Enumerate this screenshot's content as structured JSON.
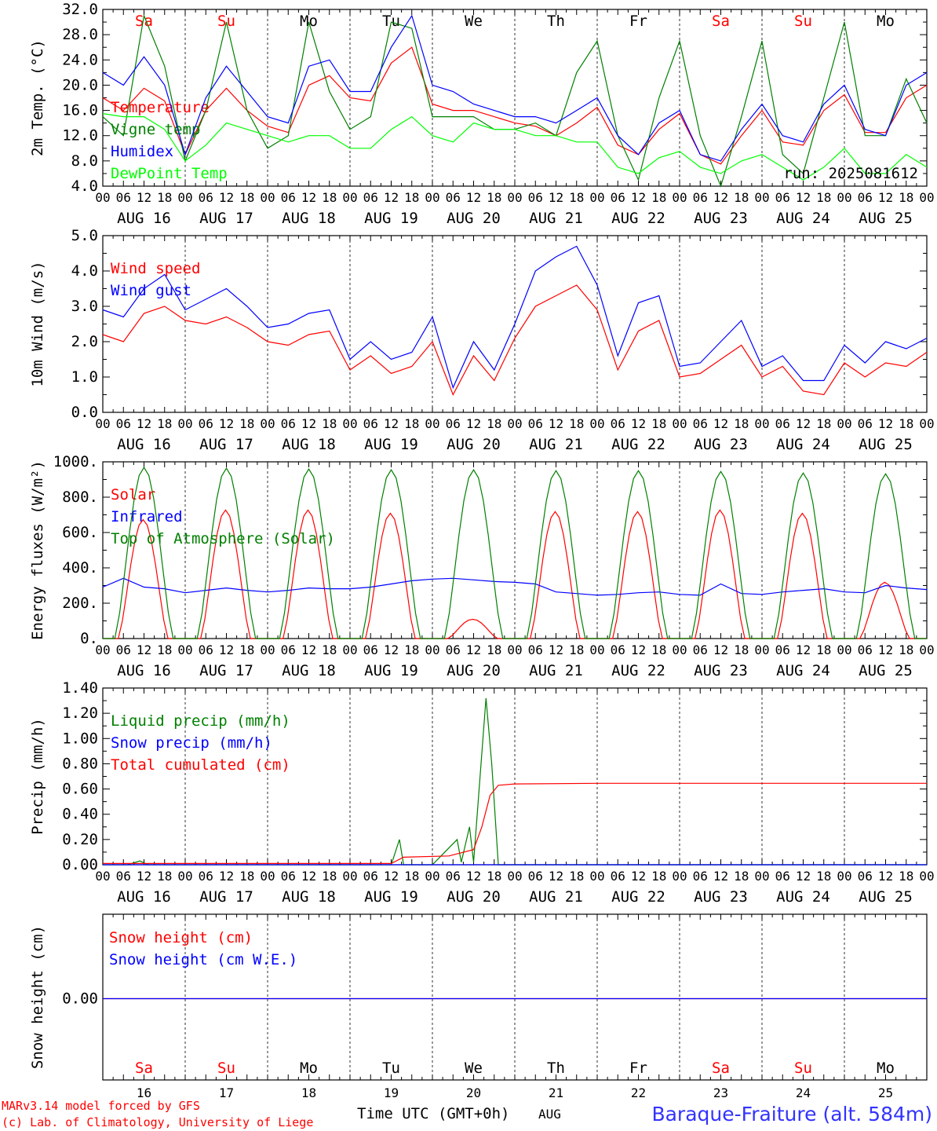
{
  "time_axis": {
    "hour_labels": [
      "00",
      "06",
      "12",
      "18"
    ],
    "final_hour_label": "00",
    "date_labels": [
      "AUG 16",
      "AUG 17",
      "AUG 18",
      "AUG 19",
      "AUG 20",
      "AUG 21",
      "AUG 22",
      "AUG 23",
      "AUG 24",
      "AUG 25"
    ],
    "weekdays": [
      "Sa",
      "Su",
      "Mo",
      "Tu",
      "We",
      "Th",
      "Fr",
      "Sa",
      "Su",
      "Mo"
    ],
    "weekend_flags": [
      true,
      true,
      false,
      false,
      false,
      false,
      false,
      true,
      true,
      false
    ],
    "bottom_day_numbers": [
      "16",
      "17",
      "18",
      "19",
      "20",
      "21",
      "22",
      "23",
      "24",
      "25"
    ],
    "xlabel": "Time UTC (GMT+0h)",
    "month_label": "AUG"
  },
  "footer": {
    "model": "MARv3.14 model forced by GFS",
    "lab": "(c) Lab. of Climatology, University of Liege",
    "station": "Baraque-Fraiture (alt. 584m)"
  },
  "colors": {
    "red": "#ff0000",
    "green": "#008000",
    "blue": "#0000ff",
    "lightgreen": "#00ff00"
  },
  "chart_data": [
    {
      "type": "line",
      "ylabel": "2m Temp. (°C)",
      "ylim": [
        4,
        32
      ],
      "yticks": [
        "4.0",
        "8.0",
        "12.0",
        "16.0",
        "20.0",
        "24.0",
        "28.0",
        "32.0"
      ],
      "annotation": "run: 2025081612",
      "x_units": "days since AUG 16 00 UTC",
      "series": [
        {
          "name": "Temperature",
          "color": "#ff0000",
          "x": [
            0,
            0.25,
            0.5,
            0.75,
            1,
            1.25,
            1.5,
            1.75,
            2,
            2.25,
            2.5,
            2.75,
            3,
            3.25,
            3.5,
            3.75,
            4,
            4.25,
            4.5,
            4.75,
            5,
            5.25,
            5.5,
            5.75,
            6,
            6.25,
            6.5,
            6.75,
            7,
            7.25,
            7.5,
            7.75,
            8,
            8.25,
            8.5,
            8.75,
            9,
            9.25,
            9.5,
            9.75,
            10
          ],
          "values": [
            18,
            16,
            19.5,
            17.5,
            9,
            16,
            19.5,
            16,
            13.5,
            12.5,
            20,
            21.5,
            18,
            17.5,
            23.5,
            26,
            17,
            16,
            16,
            15,
            14,
            13.5,
            12,
            14,
            16.5,
            10.5,
            9,
            13,
            15.5,
            9,
            7.5,
            12,
            16,
            11,
            10.5,
            16,
            18.5,
            12.5,
            12.5,
            18,
            20
          ]
        },
        {
          "name": "Vigne temp",
          "color": "#008000",
          "x": [
            0,
            0.25,
            0.5,
            0.75,
            1,
            1.25,
            1.5,
            1.75,
            2,
            2.25,
            2.5,
            2.75,
            3,
            3.25,
            3.5,
            3.75,
            4,
            4.25,
            4.5,
            4.75,
            5,
            5.25,
            5.5,
            5.75,
            6,
            6.25,
            6.5,
            6.75,
            7,
            7.25,
            7.5,
            7.75,
            8,
            8.25,
            8.5,
            8.75,
            9,
            9.25,
            9.5,
            9.75,
            10
          ],
          "values": [
            15,
            12,
            31,
            23,
            8,
            16,
            30,
            16,
            10,
            12,
            30,
            19,
            13,
            15,
            30,
            29,
            15,
            15,
            15,
            13,
            13,
            14,
            12,
            22,
            27,
            12,
            5,
            18,
            27,
            12,
            4,
            15,
            27,
            9,
            6,
            18,
            30,
            12,
            12,
            21,
            14
          ]
        },
        {
          "name": "Humidex",
          "color": "#0000ff",
          "x": [
            0,
            0.25,
            0.5,
            0.75,
            1,
            1.25,
            1.5,
            1.75,
            2,
            2.25,
            2.5,
            2.75,
            3,
            3.25,
            3.5,
            3.75,
            4,
            4.25,
            4.5,
            4.75,
            5,
            5.25,
            5.5,
            5.75,
            6,
            6.25,
            6.5,
            6.75,
            7,
            7.25,
            7.5,
            7.75,
            8,
            8.25,
            8.5,
            8.75,
            9,
            9.25,
            9.5,
            9.75,
            10
          ],
          "values": [
            22,
            20,
            24.5,
            20,
            9,
            18,
            23,
            19,
            15,
            14,
            23,
            24,
            19,
            19,
            26,
            31,
            20,
            19,
            17,
            16,
            15,
            15,
            14,
            16,
            18,
            12,
            9,
            14,
            16,
            9,
            8,
            13,
            17,
            12,
            11,
            17,
            20,
            13,
            12,
            20,
            22
          ]
        },
        {
          "name": "DewPoint Temp",
          "color": "#00ff00",
          "x": [
            0,
            0.25,
            0.5,
            0.75,
            1,
            1.25,
            1.5,
            1.75,
            2,
            2.25,
            2.5,
            2.75,
            3,
            3.25,
            3.5,
            3.75,
            4,
            4.25,
            4.5,
            4.75,
            5,
            5.25,
            5.5,
            5.75,
            6,
            6.25,
            6.5,
            6.75,
            7,
            7.25,
            7.5,
            7.75,
            8,
            8.25,
            8.5,
            8.75,
            9,
            9.25,
            9.5,
            9.75,
            10
          ],
          "values": [
            15.5,
            15,
            15,
            13,
            8,
            10.5,
            14,
            13,
            12,
            11,
            12,
            12,
            10,
            10,
            13,
            15,
            12,
            11,
            14,
            13,
            13,
            12,
            12,
            11,
            11,
            7,
            6,
            8.5,
            9.5,
            7,
            6,
            8,
            9,
            7,
            5,
            7,
            10,
            6,
            6,
            9,
            7
          ]
        }
      ]
    },
    {
      "type": "line",
      "ylabel": "10m Wind (m/s)",
      "ylim": [
        0,
        5
      ],
      "yticks": [
        "0.0",
        "1.0",
        "2.0",
        "3.0",
        "4.0",
        "5.0"
      ],
      "x_units": "days since AUG 16 00 UTC",
      "series": [
        {
          "name": "Wind speed",
          "color": "#ff0000",
          "x": [
            0,
            0.25,
            0.5,
            0.75,
            1,
            1.25,
            1.5,
            1.75,
            2,
            2.25,
            2.5,
            2.75,
            3,
            3.25,
            3.5,
            3.75,
            4,
            4.25,
            4.5,
            4.75,
            5,
            5.25,
            5.5,
            5.75,
            6,
            6.25,
            6.5,
            6.75,
            7,
            7.25,
            7.5,
            7.75,
            8,
            8.25,
            8.5,
            8.75,
            9,
            9.25,
            9.5,
            9.75,
            10
          ],
          "values": [
            2.2,
            2.0,
            2.8,
            3.0,
            2.6,
            2.5,
            2.7,
            2.4,
            2.0,
            1.9,
            2.2,
            2.3,
            1.2,
            1.6,
            1.1,
            1.3,
            2.0,
            0.5,
            1.6,
            0.9,
            2.1,
            3.0,
            3.3,
            3.6,
            2.9,
            1.2,
            2.3,
            2.6,
            1.0,
            1.1,
            1.5,
            1.9,
            1.0,
            1.3,
            0.6,
            0.5,
            1.4,
            1.0,
            1.4,
            1.3,
            1.7
          ]
        },
        {
          "name": "Wind gust",
          "color": "#0000ff",
          "x": [
            0,
            0.25,
            0.5,
            0.75,
            1,
            1.25,
            1.5,
            1.75,
            2,
            2.25,
            2.5,
            2.75,
            3,
            3.25,
            3.5,
            3.75,
            4,
            4.25,
            4.5,
            4.75,
            5,
            5.25,
            5.5,
            5.75,
            6,
            6.25,
            6.5,
            6.75,
            7,
            7.25,
            7.5,
            7.75,
            8,
            8.25,
            8.5,
            8.75,
            9,
            9.25,
            9.5,
            9.75,
            10
          ],
          "values": [
            2.9,
            2.7,
            3.5,
            3.9,
            2.9,
            3.2,
            3.5,
            3.0,
            2.4,
            2.5,
            2.8,
            2.9,
            1.5,
            2.0,
            1.5,
            1.7,
            2.7,
            0.7,
            2.0,
            1.2,
            2.5,
            4.0,
            4.4,
            4.7,
            3.6,
            1.6,
            3.1,
            3.3,
            1.3,
            1.4,
            2.0,
            2.6,
            1.3,
            1.6,
            0.9,
            0.9,
            1.9,
            1.4,
            2.0,
            1.8,
            2.1
          ]
        }
      ]
    },
    {
      "type": "line",
      "ylabel": "Energy fluxes (W/m²)",
      "ylim": [
        0,
        1100
      ],
      "yticks": [
        "0.",
        "200.",
        "400.",
        "600.",
        "800.",
        "1000."
      ],
      "x_units": "days since AUG 16 00 UTC",
      "series": [
        {
          "name": "Solar",
          "color": "#ff0000",
          "peaks": [
            740,
            800,
            800,
            780,
            120,
            790,
            790,
            800,
            780,
            350
          ],
          "peak_hour": 12,
          "day_start_hour": 4.5,
          "day_end_hour": 19
        },
        {
          "name": "Infrared",
          "color": "#0000ff",
          "x": [
            0,
            0.25,
            0.5,
            0.75,
            1,
            1.25,
            1.5,
            1.75,
            2,
            2.25,
            2.5,
            2.75,
            3,
            3.25,
            3.5,
            3.75,
            4,
            4.25,
            4.5,
            4.75,
            5,
            5.25,
            5.5,
            5.75,
            6,
            6.25,
            6.5,
            6.75,
            7,
            7.25,
            7.5,
            7.75,
            8,
            8.25,
            8.5,
            8.75,
            9,
            9.25,
            9.5,
            9.75,
            10
          ],
          "values": [
            320,
            375,
            320,
            310,
            285,
            300,
            315,
            300,
            290,
            300,
            315,
            310,
            310,
            320,
            340,
            360,
            370,
            375,
            365,
            355,
            350,
            340,
            290,
            280,
            270,
            275,
            285,
            290,
            275,
            270,
            340,
            280,
            275,
            290,
            300,
            310,
            290,
            285,
            330,
            315,
            305
          ]
        },
        {
          "name": "Top of Atmosphere (Solar)",
          "color": "#008000",
          "peaks": [
            1065,
            1060,
            1055,
            1050,
            1050,
            1045,
            1045,
            1040,
            1030,
            1025
          ],
          "peak_hour": 12,
          "day_start_hour": 3.5,
          "day_end_hour": 20.5
        }
      ]
    },
    {
      "type": "line",
      "ylabel": "Precip (mm/h)",
      "ylim": [
        0,
        1.4
      ],
      "yticks": [
        "0.00",
        "0.20",
        "0.40",
        "0.60",
        "0.80",
        "1.00",
        "1.20",
        "1.40"
      ],
      "x_units": "days since AUG 16 00 UTC",
      "series": [
        {
          "name": "Liquid precip (mm/h)",
          "color": "#008000",
          "x": [
            0,
            0.3,
            0.45,
            0.55,
            0.6,
            3.5,
            3.6,
            3.65,
            3.75,
            4.0,
            4.3,
            4.35,
            4.45,
            4.5,
            4.65,
            4.72,
            4.8,
            5.0,
            10
          ],
          "values": [
            0,
            0,
            0.03,
            0,
            0,
            0,
            0.2,
            0,
            0,
            0,
            0.2,
            0.02,
            0.3,
            0.02,
            1.32,
            0.8,
            0,
            0,
            0
          ]
        },
        {
          "name": "Snow precip (mm/h)",
          "color": "#0000ff",
          "x": [
            0,
            10
          ],
          "values": [
            0,
            0
          ]
        },
        {
          "name": "Total cumulated (cm)",
          "color": "#ff0000",
          "x": [
            0,
            3.5,
            3.65,
            4.2,
            4.5,
            4.6,
            4.7,
            4.8,
            5,
            6,
            10
          ],
          "values": [
            0.01,
            0.01,
            0.06,
            0.07,
            0.12,
            0.3,
            0.55,
            0.63,
            0.64,
            0.645,
            0.645
          ]
        }
      ]
    },
    {
      "type": "line",
      "ylabel": "Snow height (cm)",
      "yticks": [
        "0.00"
      ],
      "x_units": "days since AUG 16 00 UTC",
      "series": [
        {
          "name": "Snow height (cm)",
          "color": "#ff0000",
          "x": [
            0,
            10
          ],
          "values": [
            0,
            0
          ]
        },
        {
          "name": "Snow height (cm W.E.)",
          "color": "#0000ff",
          "x": [
            0,
            10
          ],
          "values": [
            0,
            0
          ]
        }
      ]
    }
  ]
}
